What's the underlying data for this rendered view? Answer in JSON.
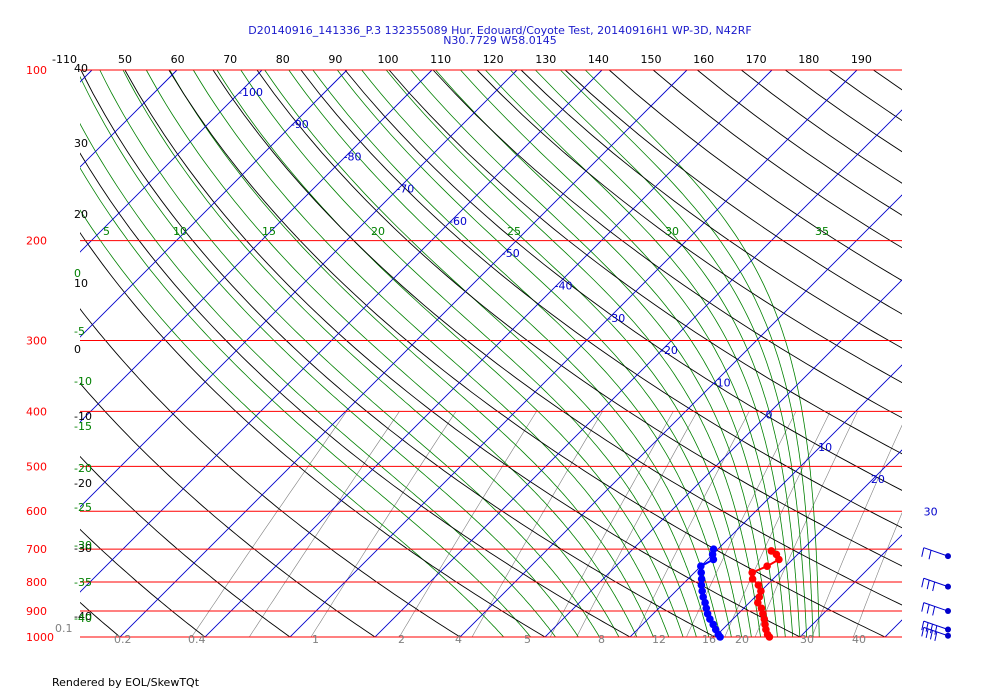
{
  "header": {
    "title_line1": "D20140916_141336_P.3 132355089 Hur. Edouard/Coyote Test, 20140916H1 WP-3D, N42RF",
    "title_line2": "N30.7729 W58.0145"
  },
  "footer": {
    "text": "Rendered by EOL/SkewTQt"
  },
  "colors": {
    "isobar": "#ff0000",
    "isotherm": "#0000cc",
    "dry_adiabat": "#000000",
    "moist_adiabat": "#008000",
    "mixing_ratio": "#808080",
    "temperature_trace": "#ff0000",
    "dewpoint_trace": "#0000ff",
    "wind_barb": "#0000cc"
  },
  "chart_data": {
    "type": "skew-t",
    "ylim": [
      1000,
      100
    ],
    "y_scale": "log",
    "pressure_levels": [
      100,
      200,
      300,
      400,
      500,
      600,
      700,
      800,
      900,
      1000
    ],
    "top_tick_labels": [
      "-110",
      "50",
      "60",
      "70",
      "80",
      "90",
      "100",
      "110",
      "120",
      "130",
      "140",
      "150",
      "160",
      "170",
      "180",
      "190"
    ],
    "isotherm_labels": [
      "-100",
      "-90",
      "-80",
      "-70",
      "-60",
      "-50",
      "-40",
      "-30",
      "-20",
      "-10",
      "0",
      "10",
      "20",
      "30"
    ],
    "dry_adiabat_labels": [
      "40",
      "30",
      "20",
      "10",
      "0",
      "-10",
      "-20",
      "-30",
      "-40"
    ],
    "moist_adiabat_labels_top": [
      "5",
      "10",
      "15",
      "20",
      "25",
      "30",
      "35"
    ],
    "moist_adiabat_labels_left": [
      "0",
      "-5",
      "-10",
      "-15",
      "-20",
      "-25",
      "-30",
      "-35",
      "-40"
    ],
    "mixing_ratio_labels": [
      "0.1",
      "0.2",
      "0.4",
      "1",
      "2",
      "4",
      "5",
      "8",
      "12",
      "16",
      "20",
      "30",
      "40"
    ],
    "temperature_profile": {
      "pressure": [
        705,
        715,
        730,
        750,
        770,
        790,
        810,
        830,
        850,
        870,
        890,
        910,
        930,
        950,
        970,
        990,
        1000
      ],
      "temp": [
        16.5,
        17.5,
        18.4,
        17.8,
        16.8,
        17.6,
        19.0,
        20.0,
        20.5,
        21.0,
        22.1,
        22.9,
        23.7,
        24.4,
        25.1,
        25.9,
        26.4
      ]
    },
    "dewpoint_profile": {
      "pressure": [
        700,
        715,
        730,
        750,
        770,
        790,
        810,
        830,
        850,
        870,
        890,
        910,
        930,
        950,
        970,
        990,
        1000
      ],
      "dewpoint": [
        9.5,
        10.0,
        10.7,
        10.0,
        10.8,
        11.6,
        12.3,
        13.1,
        13.9,
        14.8,
        15.6,
        16.4,
        17.3,
        18.3,
        19.2,
        20.1,
        20.6
      ]
    },
    "wind_barbs": [
      {
        "pressure": 720,
        "speed_kt": 20
      },
      {
        "pressure": 815,
        "speed_kt": 25
      },
      {
        "pressure": 900,
        "speed_kt": 30
      },
      {
        "pressure": 970,
        "speed_kt": 35
      },
      {
        "pressure": 995,
        "speed_kt": 40
      }
    ]
  }
}
